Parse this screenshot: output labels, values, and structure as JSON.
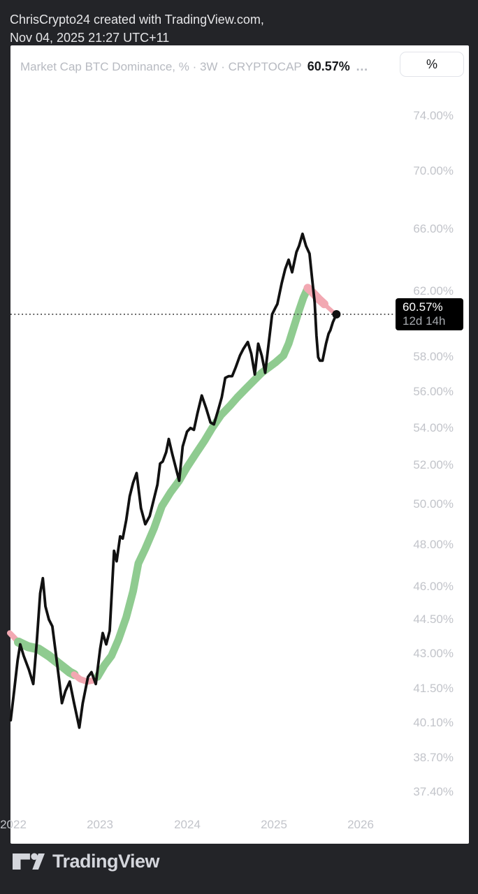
{
  "header": {
    "line1": "ChrisCrypto24 created with TradingView.com,",
    "line2": "Nov 04, 2025 21:27 UTC+11"
  },
  "chart_header": {
    "title": "Market Cap BTC Dominance, % · 3W · CRYPTOCAP",
    "value": "60.57%",
    "ellipsis": "…",
    "unit_button": "%"
  },
  "price_label": {
    "value": "60.57%",
    "countdown": "12d 14h"
  },
  "footer": {
    "brand": "TradingView"
  },
  "colors": {
    "bg": "#232428",
    "panel": "#ffffff",
    "header_text": "#e6e6e8",
    "title_gray": "#b7bac1",
    "value_black": "#17191c",
    "axis_label": "#c2c4ca",
    "line": "#111111",
    "ribbon_green": "#8fcb90",
    "ribbon_pink": "#f2a8b2",
    "price_label_bg": "#000000",
    "price_label_text": "#ffffff",
    "price_label_sub": "#a6a9ae",
    "button_border": "#e2e4ea",
    "logo": "#d4d6dc",
    "dotted": "#444444"
  },
  "chart_data": {
    "type": "line",
    "title": "Market Cap BTC Dominance",
    "symbol": "CRYPTOCAP",
    "interval": "3W",
    "unit": "%",
    "scale": "log",
    "grid": false,
    "legend_position": "none",
    "last_value": 60.57,
    "price_line": 60.57,
    "countdown": "12d 14h",
    "xlim": [
      2021.95,
      2027.2
    ],
    "ylim": [
      36.9,
      76.5
    ],
    "y_ticks": [
      74,
      70,
      66,
      62,
      58,
      56,
      54,
      52,
      50,
      48,
      46,
      44.5,
      43,
      41.5,
      40.1,
      38.7,
      37.4
    ],
    "y_tick_labels": [
      "74.00%",
      "70.00%",
      "66.00%",
      "62.00%",
      "58.00%",
      "56.00%",
      "54.00%",
      "52.00%",
      "50.00%",
      "48.00%",
      "46.00%",
      "44.50%",
      "43.00%",
      "41.50%",
      "40.10%",
      "38.70%",
      "37.40%"
    ],
    "x_ticks": [
      2022,
      2023,
      2024,
      2025,
      2026
    ],
    "x_tick_labels": [
      "2022",
      "2023",
      "2024",
      "2025",
      "2026"
    ],
    "series": [
      {
        "name": "BTC Dominance %",
        "points": [
          [
            2021.97,
            40.2
          ],
          [
            2022.01,
            41.4
          ],
          [
            2022.05,
            42.7
          ],
          [
            2022.08,
            43.4
          ],
          [
            2022.12,
            42.9
          ],
          [
            2022.18,
            42.3
          ],
          [
            2022.23,
            41.7
          ],
          [
            2022.27,
            43.5
          ],
          [
            2022.31,
            45.7
          ],
          [
            2022.34,
            46.4
          ],
          [
            2022.37,
            45.1
          ],
          [
            2022.41,
            44.5
          ],
          [
            2022.45,
            44.2
          ],
          [
            2022.49,
            43.0
          ],
          [
            2022.53,
            41.8
          ],
          [
            2022.56,
            40.9
          ],
          [
            2022.6,
            41.4
          ],
          [
            2022.65,
            41.8
          ],
          [
            2022.7,
            40.9
          ],
          [
            2022.76,
            39.9
          ],
          [
            2022.8,
            40.9
          ],
          [
            2022.86,
            42.0
          ],
          [
            2022.9,
            42.2
          ],
          [
            2022.95,
            41.7
          ],
          [
            2023.0,
            43.2
          ],
          [
            2023.03,
            43.9
          ],
          [
            2023.07,
            43.4
          ],
          [
            2023.11,
            44.0
          ],
          [
            2023.16,
            47.7
          ],
          [
            2023.19,
            47.2
          ],
          [
            2023.23,
            48.4
          ],
          [
            2023.26,
            48.3
          ],
          [
            2023.3,
            49.2
          ],
          [
            2023.34,
            50.4
          ],
          [
            2023.38,
            51.1
          ],
          [
            2023.42,
            51.6
          ],
          [
            2023.47,
            49.8
          ],
          [
            2023.52,
            49.0
          ],
          [
            2023.57,
            49.4
          ],
          [
            2023.61,
            50.1
          ],
          [
            2023.66,
            51.0
          ],
          [
            2023.69,
            52.1
          ],
          [
            2023.72,
            52.2
          ],
          [
            2023.76,
            52.7
          ],
          [
            2023.79,
            53.4
          ],
          [
            2023.83,
            52.6
          ],
          [
            2023.87,
            51.9
          ],
          [
            2023.91,
            51.2
          ],
          [
            2023.95,
            53.0
          ],
          [
            2024.0,
            53.8
          ],
          [
            2024.04,
            54.0
          ],
          [
            2024.08,
            53.9
          ],
          [
            2024.12,
            54.8
          ],
          [
            2024.17,
            55.8
          ],
          [
            2024.22,
            55.1
          ],
          [
            2024.27,
            54.3
          ],
          [
            2024.31,
            54.2
          ],
          [
            2024.36,
            55.0
          ],
          [
            2024.4,
            55.7
          ],
          [
            2024.44,
            56.8
          ],
          [
            2024.48,
            56.9
          ],
          [
            2024.52,
            56.9
          ],
          [
            2024.56,
            57.4
          ],
          [
            2024.61,
            58.1
          ],
          [
            2024.65,
            58.5
          ],
          [
            2024.7,
            58.9
          ],
          [
            2024.74,
            58.2
          ],
          [
            2024.78,
            57.0
          ],
          [
            2024.82,
            58.8
          ],
          [
            2024.86,
            58.1
          ],
          [
            2024.9,
            57.1
          ],
          [
            2024.98,
            60.57
          ],
          [
            2025.02,
            61.0
          ],
          [
            2025.04,
            61.2
          ],
          [
            2025.09,
            62.5
          ],
          [
            2025.13,
            63.4
          ],
          [
            2025.17,
            64.0
          ],
          [
            2025.21,
            63.2
          ],
          [
            2025.26,
            64.5
          ],
          [
            2025.29,
            64.9
          ],
          [
            2025.33,
            65.7
          ],
          [
            2025.37,
            64.9
          ],
          [
            2025.41,
            64.4
          ],
          [
            2025.44,
            62.8
          ],
          [
            2025.47,
            61.3
          ],
          [
            2025.49,
            59.3
          ],
          [
            2025.51,
            58.0
          ],
          [
            2025.53,
            57.8
          ],
          [
            2025.56,
            57.8
          ],
          [
            2025.6,
            58.8
          ],
          [
            2025.63,
            59.4
          ],
          [
            2025.65,
            59.6
          ],
          [
            2025.68,
            60.1
          ],
          [
            2025.72,
            60.57
          ]
        ]
      }
    ],
    "ribbon_segments": [
      {
        "color": "pink",
        "width": 8,
        "points": [
          [
            2021.96,
            43.9
          ],
          [
            2022.01,
            43.7
          ],
          [
            2022.06,
            43.5
          ]
        ]
      },
      {
        "color": "green",
        "width": 13,
        "points": [
          [
            2022.06,
            43.5
          ],
          [
            2022.17,
            43.3
          ],
          [
            2022.29,
            43.2
          ],
          [
            2022.41,
            42.9
          ],
          [
            2022.53,
            42.55
          ],
          [
            2022.65,
            42.2
          ],
          [
            2022.7,
            42.1
          ]
        ]
      },
      {
        "color": "pink",
        "width": 9,
        "points": [
          [
            2022.7,
            42.1
          ],
          [
            2022.77,
            41.9
          ],
          [
            2022.85,
            41.8
          ],
          [
            2022.92,
            41.85
          ],
          [
            2022.97,
            42.0
          ]
        ]
      },
      {
        "color": "green",
        "width": 11,
        "points": [
          [
            2022.97,
            42.0
          ],
          [
            2023.05,
            42.5
          ],
          [
            2023.13,
            42.9
          ],
          [
            2023.21,
            43.6
          ],
          [
            2023.3,
            44.6
          ],
          [
            2023.38,
            45.8
          ],
          [
            2023.44,
            47.1
          ],
          [
            2023.52,
            47.8
          ],
          [
            2023.62,
            48.8
          ],
          [
            2023.71,
            49.9
          ],
          [
            2023.81,
            50.6
          ],
          [
            2023.91,
            51.2
          ],
          [
            2024.0,
            51.9
          ],
          [
            2024.1,
            52.6
          ],
          [
            2024.2,
            53.3
          ],
          [
            2024.29,
            54.0
          ],
          [
            2024.39,
            54.7
          ],
          [
            2024.49,
            55.2
          ],
          [
            2024.58,
            55.7
          ],
          [
            2024.68,
            56.2
          ],
          [
            2024.78,
            56.7
          ],
          [
            2024.86,
            57.1
          ],
          [
            2024.94,
            57.4
          ],
          [
            2025.02,
            57.7
          ],
          [
            2025.11,
            58.1
          ],
          [
            2025.17,
            58.8
          ],
          [
            2025.23,
            59.8
          ],
          [
            2025.29,
            60.8
          ],
          [
            2025.34,
            61.6
          ],
          [
            2025.39,
            62.2
          ]
        ]
      },
      {
        "color": "pink",
        "width": 12,
        "points": [
          [
            2025.39,
            62.2
          ],
          [
            2025.45,
            61.9
          ],
          [
            2025.52,
            61.5
          ],
          [
            2025.58,
            61.2
          ]
        ]
      },
      {
        "color": "pink",
        "width": 6,
        "points": [
          [
            2025.58,
            61.2
          ],
          [
            2025.64,
            60.9
          ],
          [
            2025.7,
            60.62
          ]
        ]
      }
    ]
  }
}
